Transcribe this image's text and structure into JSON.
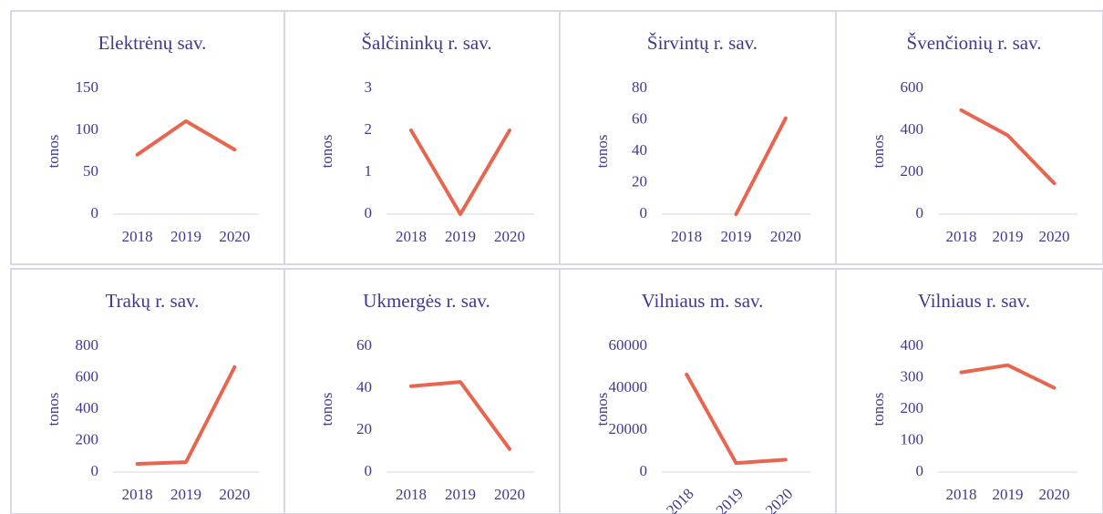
{
  "chart_data": [
    {
      "type": "line",
      "title": "Elektrėnų sav.",
      "y_label": "tonos",
      "categories": [
        "2018",
        "2019",
        "2020"
      ],
      "series": [
        {
          "name": "tonos",
          "color": "#e8664f",
          "values": [
            71,
            111,
            77
          ]
        }
      ],
      "ylim": [
        0,
        150
      ],
      "yticks": [
        0,
        50,
        100,
        150
      ],
      "grid": false
    },
    {
      "type": "line",
      "title": "Šalčininkų r. sav.",
      "y_label": "tonos",
      "categories": [
        "2018",
        "2019",
        "2020"
      ],
      "series": [
        {
          "name": "tonos",
          "color": "#e8664f",
          "values": [
            2,
            0,
            2
          ]
        }
      ],
      "ylim": [
        0,
        3
      ],
      "yticks": [
        0,
        1,
        2,
        3
      ],
      "grid": false
    },
    {
      "type": "line",
      "title": "Širvintų r. sav.",
      "y_label": "tonos",
      "categories": [
        "2018",
        "2019",
        "2020"
      ],
      "series": [
        {
          "name": "tonos",
          "color": "#e8664f",
          "values": [
            null,
            0,
            61
          ]
        }
      ],
      "ylim": [
        0,
        80
      ],
      "yticks": [
        0,
        20,
        40,
        60,
        80
      ],
      "grid": false
    },
    {
      "type": "line",
      "title": "Švenčionių r. sav.",
      "y_label": "tonos",
      "categories": [
        "2018",
        "2019",
        "2020"
      ],
      "series": [
        {
          "name": "tonos",
          "color": "#e8664f",
          "values": [
            496,
            376,
            147
          ]
        }
      ],
      "ylim": [
        0,
        600
      ],
      "yticks": [
        0,
        200,
        400,
        600
      ],
      "grid": false
    },
    {
      "type": "line",
      "title": "Trakų r. sav.",
      "y_label": "tonos",
      "categories": [
        "2018",
        "2019",
        "2020"
      ],
      "series": [
        {
          "name": "tonos",
          "color": "#e8664f",
          "values": [
            52,
            63,
            668
          ]
        }
      ],
      "ylim": [
        0,
        800
      ],
      "yticks": [
        0,
        200,
        400,
        600,
        800
      ],
      "grid": false
    },
    {
      "type": "line",
      "title": "Ukmergės r. sav.",
      "y_label": "tonos",
      "categories": [
        "2018",
        "2019",
        "2020"
      ],
      "series": [
        {
          "name": "tonos",
          "color": "#e8664f",
          "values": [
            41,
            43,
            11
          ]
        }
      ],
      "ylim": [
        0,
        60
      ],
      "yticks": [
        0,
        20,
        40,
        60
      ],
      "grid": false
    },
    {
      "type": "line",
      "title": "Vilniaus m. sav.",
      "y_label": "tonos",
      "categories": [
        "2018",
        "2019",
        "2020"
      ],
      "series": [
        {
          "name": "tonos",
          "color": "#e8664f",
          "values": [
            46600,
            4300,
            5900
          ]
        }
      ],
      "ylim": [
        0,
        60000
      ],
      "yticks": [
        0,
        20000,
        40000,
        60000
      ],
      "xtick_rotation": -45,
      "grid": false
    },
    {
      "type": "line",
      "title": "Vilniaus r. sav.",
      "y_label": "tonos",
      "categories": [
        "2018",
        "2019",
        "2020"
      ],
      "series": [
        {
          "name": "tonos",
          "color": "#e8664f",
          "values": [
            317,
            340,
            268
          ]
        }
      ],
      "ylim": [
        0,
        400
      ],
      "yticks": [
        0,
        100,
        200,
        300,
        400
      ],
      "grid": false
    }
  ]
}
